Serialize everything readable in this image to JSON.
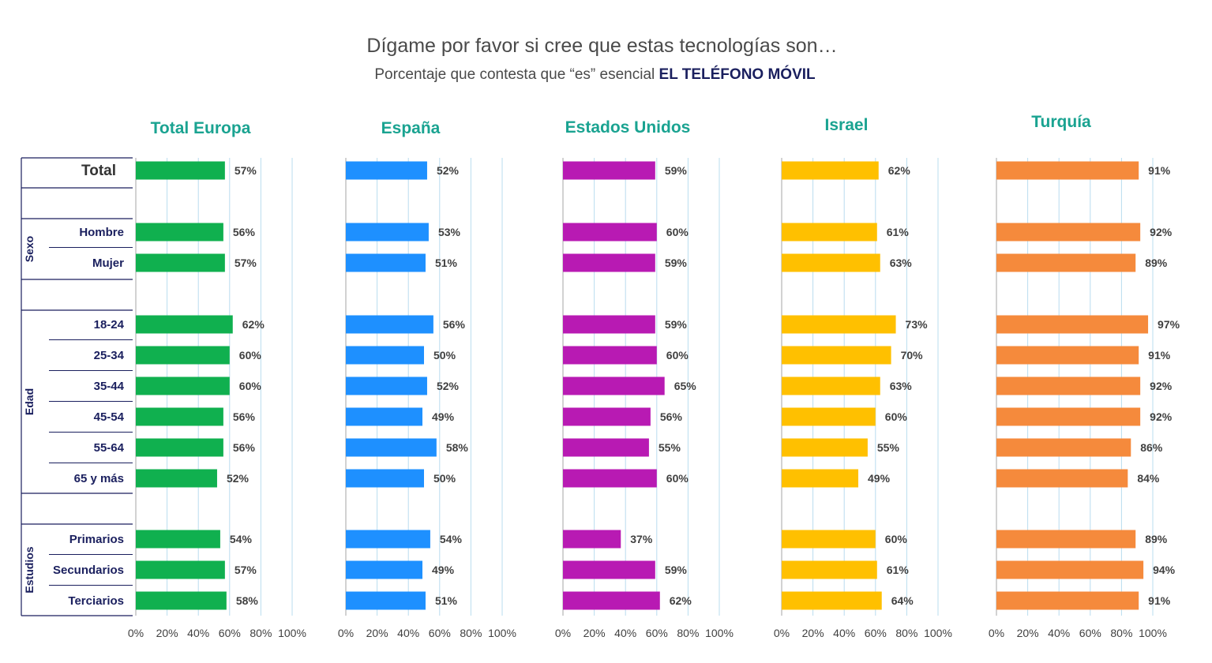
{
  "title": "Dígame por favor si cree que estas tecnologías son…",
  "subtitle": {
    "prefix": "Porcentaje que contesta que “es” esencial",
    "emphasis": "EL TELÉFONO MÓVIL"
  },
  "colors": {
    "panel_title": "#1aa391",
    "row_label": "#1a1f5e",
    "gridline": "#b9dcef",
    "value_label": "#404040",
    "axis_label": "#404040"
  },
  "chart_data": {
    "type": "bar",
    "orientation": "horizontal",
    "xlim": [
      0,
      100
    ],
    "x_ticks": [
      "0%",
      "20%",
      "40%",
      "60%",
      "80%",
      "100%"
    ],
    "value_format": "percent",
    "row_groups": [
      {
        "group": "",
        "rows": [
          "Total"
        ]
      },
      {
        "group": "Sexo",
        "rows": [
          "Hombre",
          "Mujer"
        ]
      },
      {
        "group": "Edad",
        "rows": [
          "18-24",
          "25-34",
          "35-44",
          "45-54",
          "55-64",
          "65 y más"
        ]
      },
      {
        "group": "Estudios",
        "rows": [
          "Primarios",
          "Secundarios",
          "Terciarios"
        ]
      }
    ],
    "categories": [
      "Total",
      "Hombre",
      "Mujer",
      "18-24",
      "25-34",
      "35-44",
      "45-54",
      "55-64",
      "65 y más",
      "Primarios",
      "Secundarios",
      "Terciarios"
    ],
    "series": [
      {
        "name": "Total Europa",
        "color": "#10b04f",
        "values": [
          57,
          56,
          57,
          62,
          60,
          60,
          56,
          56,
          52,
          54,
          57,
          58
        ]
      },
      {
        "name": "España",
        "color": "#1e90ff",
        "values": [
          52,
          53,
          51,
          56,
          50,
          52,
          49,
          58,
          50,
          54,
          49,
          51
        ]
      },
      {
        "name": "Estados Unidos",
        "color": "#b81ab3",
        "values": [
          59,
          60,
          59,
          59,
          60,
          65,
          56,
          55,
          60,
          37,
          59,
          62
        ]
      },
      {
        "name": "Israel",
        "color": "#ffc000",
        "values": [
          62,
          61,
          63,
          73,
          70,
          63,
          60,
          55,
          49,
          60,
          61,
          64
        ]
      },
      {
        "name": "Turquía",
        "color": "#f58a3c",
        "values": [
          91,
          92,
          89,
          97,
          91,
          92,
          92,
          86,
          84,
          89,
          94,
          91
        ]
      }
    ]
  }
}
